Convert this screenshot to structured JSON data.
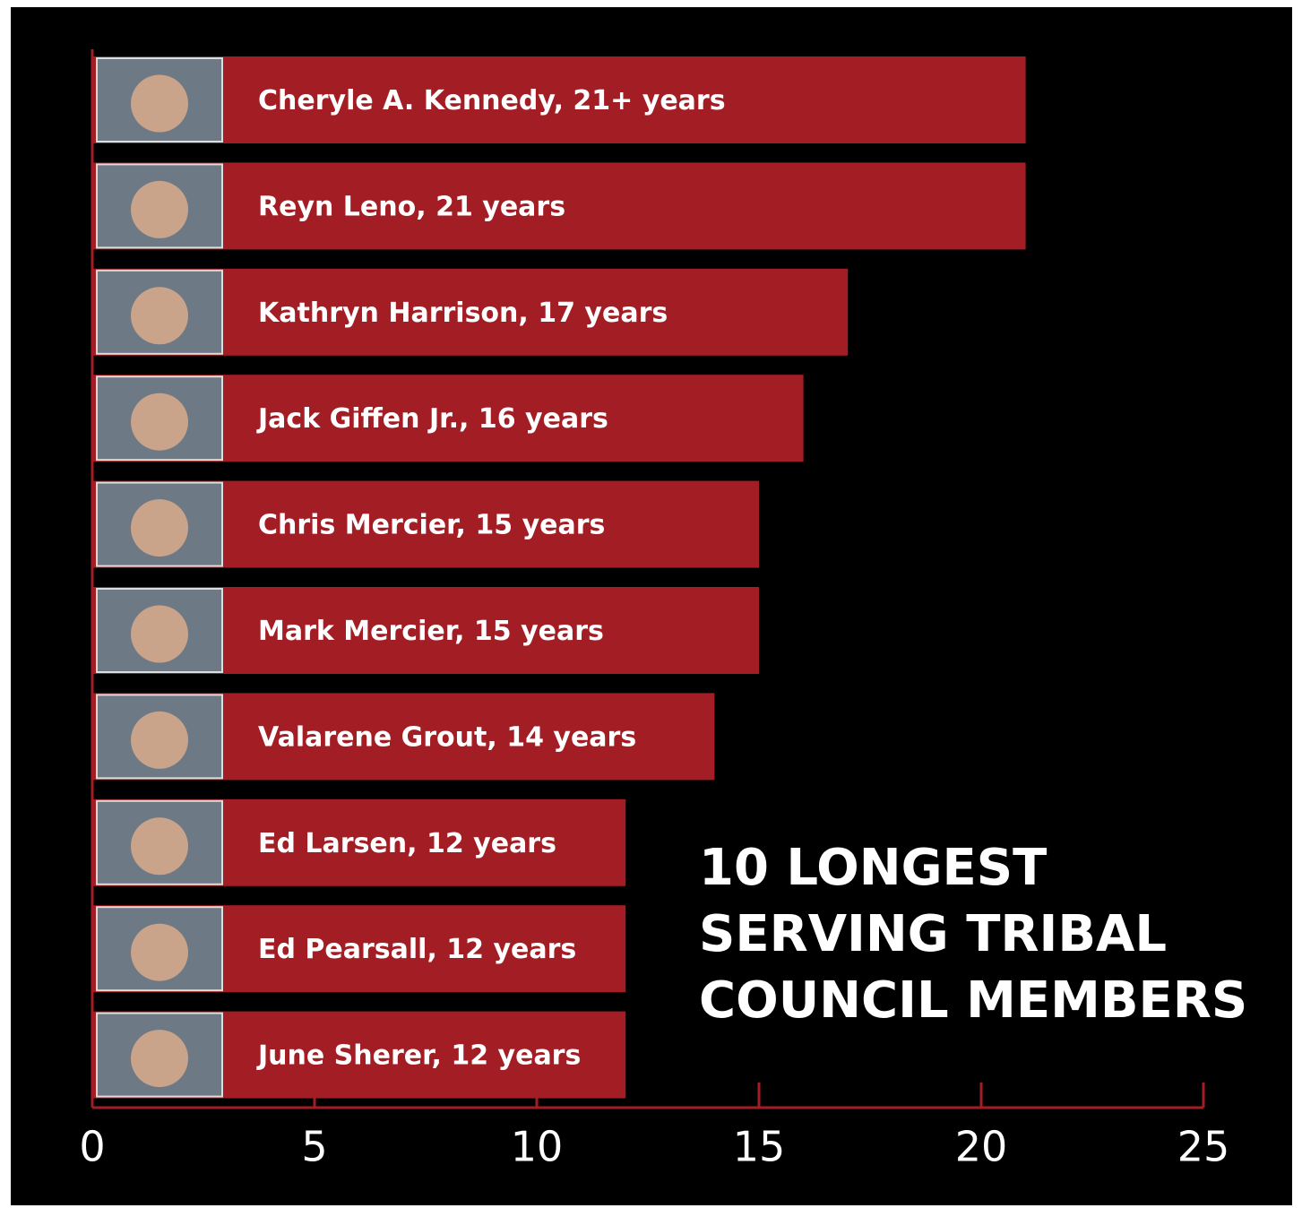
{
  "chart_data": {
    "type": "bar",
    "orientation": "horizontal",
    "title_lines": [
      "10 LONGEST",
      "SERVING TRIBAL",
      "COUNCIL MEMBERS"
    ],
    "categories": [
      "Cheryle A. Kennedy, 21+ years",
      "Reyn Leno, 21 years",
      "Kathryn Harrison, 17 years",
      "Jack Giffen Jr., 16 years",
      "Chris Mercier, 15 years",
      "Mark Mercier, 15 years",
      "Valarene Grout, 14 years",
      "Ed Larsen, 12 years",
      "Ed Pearsall, 12 years",
      "June Sherer, 12 years"
    ],
    "values": [
      21,
      21,
      17,
      16,
      15,
      15,
      14,
      12,
      12,
      12
    ],
    "color": "#a31d24",
    "xlim": [
      0,
      25
    ],
    "xticks": [
      0,
      5,
      10,
      15,
      20,
      25
    ],
    "grid": false
  }
}
